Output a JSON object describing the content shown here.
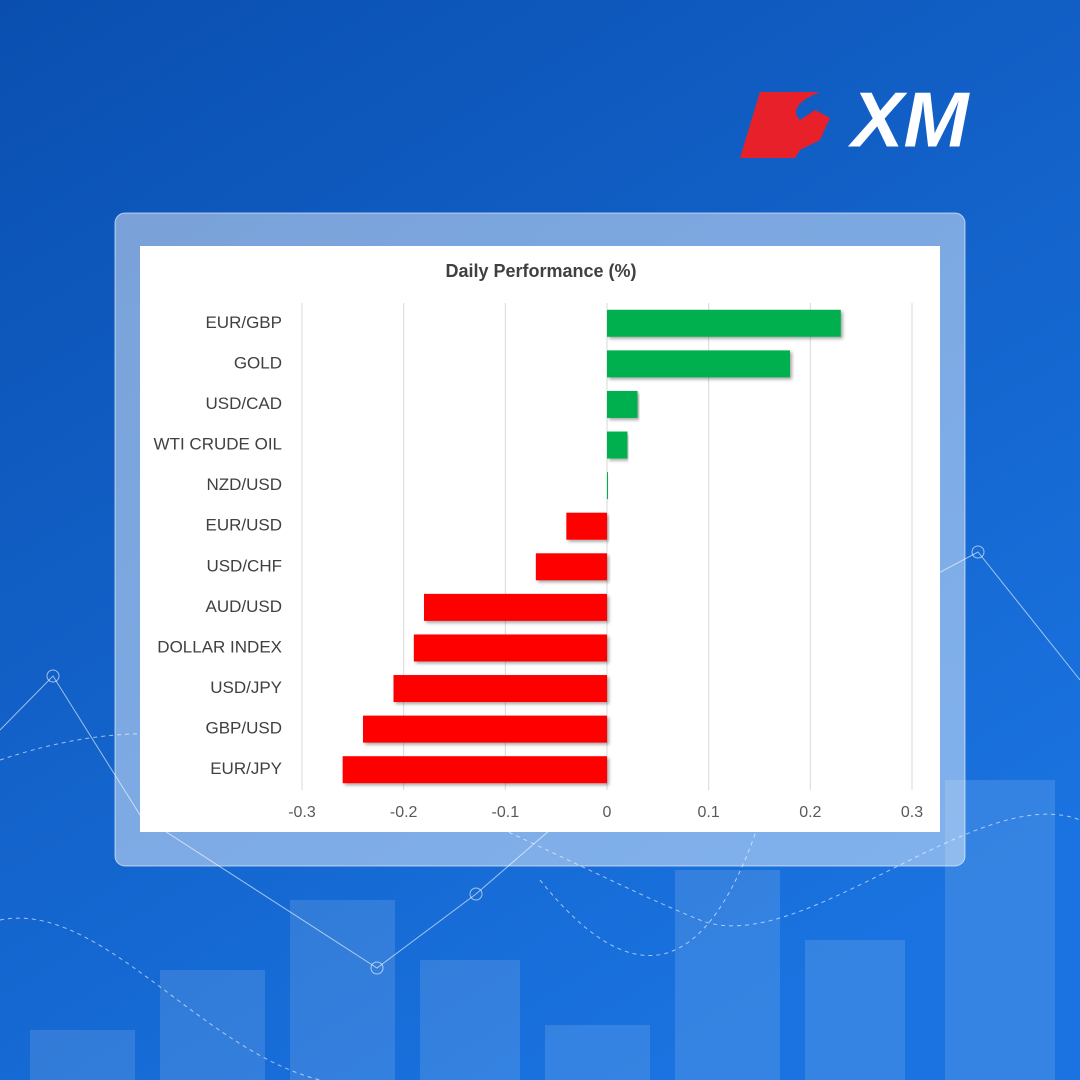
{
  "logo": "XM",
  "chart_data": {
    "type": "barh",
    "title": "Daily Performance (%)",
    "categories": [
      "EUR/GBP",
      "GOLD",
      "USD/CAD",
      "WTI CRUDE OIL",
      "NZD/USD",
      "EUR/USD",
      "USD/CHF",
      "AUD/USD",
      "DOLLAR INDEX",
      "USD/JPY",
      "GBP/USD",
      "EUR/JPY"
    ],
    "values": [
      0.23,
      0.18,
      0.03,
      0.02,
      0,
      -0.04,
      -0.07,
      -0.18,
      -0.19,
      -0.21,
      -0.24,
      -0.26
    ],
    "colors": [
      "#00b050",
      "#00b050",
      "#00b050",
      "#00b050",
      "#00b050",
      "#ff0000",
      "#ff0000",
      "#ff0000",
      "#ff0000",
      "#ff0000",
      "#ff0000",
      "#ff0000"
    ],
    "xlim": [
      -0.3,
      0.3
    ],
    "xticks": [
      -0.3,
      -0.2,
      -0.1,
      0,
      0.1,
      0.2,
      0.3
    ],
    "grid": true
  }
}
